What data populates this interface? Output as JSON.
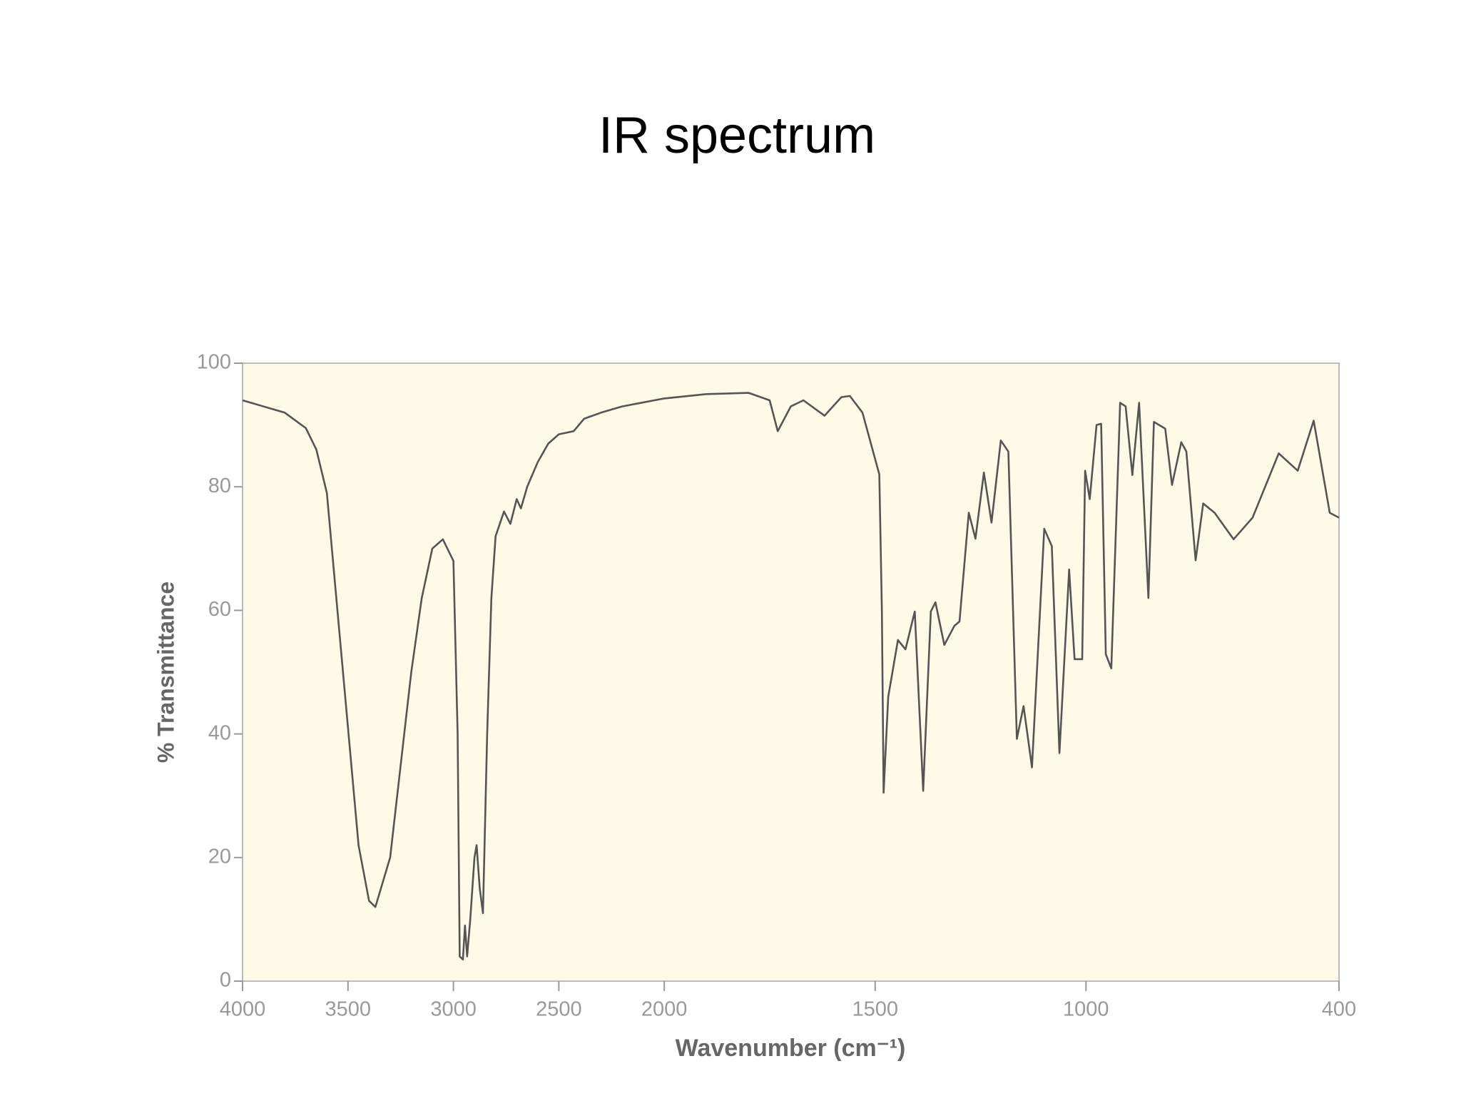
{
  "chart_data": {
    "type": "line",
    "title": "IR spectrum",
    "xlabel": "Wavenumber (cm⁻¹)",
    "ylabel": "% Transmittance",
    "xlim": [
      4000,
      400
    ],
    "xticks": [
      4000,
      3500,
      3000,
      2500,
      2000,
      1500,
      1000,
      400
    ],
    "xbreak": 2000,
    "ylim": [
      0,
      100
    ],
    "yticks": [
      0,
      20,
      40,
      60,
      80,
      100
    ],
    "series": [
      {
        "color": "#555555",
        "x": [
          4000,
          3800,
          3700,
          3650,
          3600,
          3550,
          3500,
          3450,
          3400,
          3370,
          3300,
          3250,
          3200,
          3150,
          3100,
          3050,
          3000,
          2980,
          2970,
          2955,
          2945,
          2935,
          2920,
          2900,
          2890,
          2875,
          2860,
          2840,
          2820,
          2800,
          2760,
          2730,
          2700,
          2680,
          2650,
          2600,
          2550,
          2500,
          2430,
          2380,
          2300,
          2200,
          2000,
          1900,
          1800,
          1750,
          1731,
          1700,
          1670,
          1620,
          1580,
          1560,
          1530,
          1510,
          1490,
          1484,
          1480,
          1469,
          1446,
          1428,
          1406,
          1386,
          1368,
          1357,
          1336,
          1312,
          1300,
          1278,
          1262,
          1242,
          1224,
          1202,
          1184,
          1164,
          1148,
          1128,
          1099,
          1081,
          1063,
          1040,
          1027,
          1009,
          1002,
          991,
          975,
          964,
          953,
          940,
          919,
          906,
          890,
          874,
          852,
          839,
          812,
          796,
          774,
          762,
          740,
          722,
          695,
          650,
          605,
          543,
          498,
          460,
          422,
          400
        ],
        "values": [
          94,
          92,
          89.5,
          86,
          79,
          60,
          41,
          22,
          13,
          12,
          20,
          35,
          50,
          62,
          70,
          71.5,
          68,
          40,
          4,
          3.5,
          9,
          4,
          10,
          20,
          22,
          15,
          11,
          40,
          62,
          72,
          76,
          74,
          78,
          76.5,
          80,
          84,
          87,
          88.5,
          89,
          91,
          92,
          93,
          94.3,
          95,
          95.2,
          94,
          89,
          93,
          94,
          91.5,
          94.5,
          94.7,
          92,
          87,
          82,
          60,
          30.5,
          46,
          55.2,
          53.7,
          59.8,
          30.8,
          59.8,
          61.3,
          54.4,
          57.5,
          58.2,
          75.8,
          71.6,
          82.3,
          74.2,
          87.5,
          85.7,
          39.2,
          44.5,
          34.6,
          73.2,
          70.4,
          36.9,
          66.6,
          52.1,
          52.1,
          82.6,
          78,
          90,
          90.2,
          52.9,
          50.6,
          93.6,
          93,
          81.9,
          93.6,
          62,
          90.5,
          89.4,
          80.3,
          87.2,
          85.7,
          68.1,
          77.3,
          75.8,
          71.5,
          75,
          85.4,
          82.6,
          90.7,
          75.8,
          75
        ]
      }
    ]
  }
}
